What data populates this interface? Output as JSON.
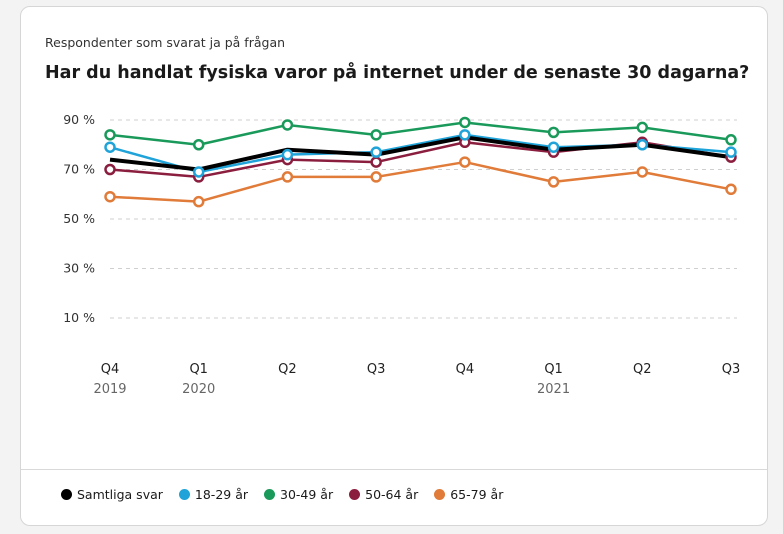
{
  "subtitle": "Respondenter som svarat ja på frågan",
  "chart_data": {
    "type": "line",
    "title": "Har du handlat fysiska varor på internet under de senaste 30 dagarna?",
    "y_ticks": [
      "90 %",
      "70 %",
      "50 %",
      "30 %",
      "10 %"
    ],
    "y_tick_values": [
      90,
      70,
      50,
      30,
      10
    ],
    "ylim": [
      5,
      95
    ],
    "grid": true,
    "legend_position": "bottom",
    "categories": [
      {
        "quarter": "Q4",
        "year": "2019"
      },
      {
        "quarter": "Q1",
        "year": "2020"
      },
      {
        "quarter": "Q2",
        "year": ""
      },
      {
        "quarter": "Q3",
        "year": ""
      },
      {
        "quarter": "Q4",
        "year": ""
      },
      {
        "quarter": "Q1",
        "year": "2021"
      },
      {
        "quarter": "Q2",
        "year": ""
      },
      {
        "quarter": "Q3",
        "year": ""
      }
    ],
    "series": [
      {
        "name": "65-79 år",
        "color": "#e07b39",
        "markers": true,
        "values": [
          59,
          57,
          67,
          67,
          73,
          65,
          69,
          62
        ]
      },
      {
        "name": "50-64 år",
        "color": "#8b1e3f",
        "markers": true,
        "values": [
          70,
          67,
          74,
          73,
          81,
          77,
          81,
          75
        ]
      },
      {
        "name": "18-29 år",
        "color": "#1fa3d8",
        "markers": true,
        "values": [
          79,
          69,
          76,
          77,
          84,
          79,
          80,
          77
        ]
      },
      {
        "name": "Samtliga svar",
        "color": "#000000",
        "markers": false,
        "values": [
          74,
          70,
          78,
          76,
          83,
          78,
          80,
          75
        ]
      },
      {
        "name": "30-49 år",
        "color": "#1a9a5a",
        "markers": true,
        "values": [
          84,
          80,
          88,
          84,
          89,
          85,
          87,
          82
        ]
      }
    ],
    "legend_order": [
      "Samtliga svar",
      "18-29 år",
      "30-49 år",
      "50-64 år",
      "65-79 år"
    ]
  }
}
